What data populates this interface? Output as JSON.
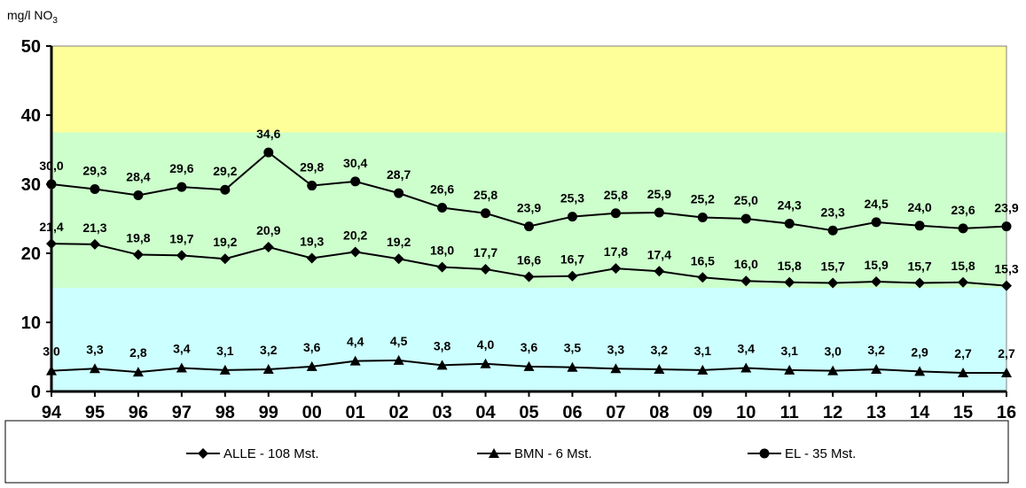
{
  "chart_data": {
    "type": "line",
    "ylabel_main": "mg/l NO",
    "ylabel_sub": "3",
    "categories": [
      "94",
      "95",
      "96",
      "97",
      "98",
      "99",
      "00",
      "01",
      "02",
      "03",
      "04",
      "05",
      "06",
      "07",
      "08",
      "09",
      "10",
      "11",
      "12",
      "13",
      "14",
      "15",
      "16"
    ],
    "ylim": [
      0,
      50
    ],
    "yticks": [
      0,
      10,
      20,
      30,
      40,
      50
    ],
    "background_bands": [
      {
        "from": 0,
        "to": 15,
        "color": "#ccffff"
      },
      {
        "from": 15,
        "to": 37.5,
        "color": "#ccffcc"
      },
      {
        "from": 37.5,
        "to": 50,
        "color": "#ffff99"
      }
    ],
    "series": [
      {
        "name": "ALLE - 108 Mst.",
        "marker": "diamond",
        "values": [
          21.4,
          21.3,
          19.8,
          19.7,
          19.2,
          20.9,
          19.3,
          20.2,
          19.2,
          18.0,
          17.7,
          16.6,
          16.7,
          17.8,
          17.4,
          16.5,
          16.0,
          15.8,
          15.7,
          15.9,
          15.7,
          15.8,
          15.3
        ],
        "labels": [
          "21,4",
          "21,3",
          "19,8",
          "19,7",
          "19,2",
          "20,9",
          "19,3",
          "20,2",
          "19,2",
          "18,0",
          "17,7",
          "16,6",
          "16,7",
          "17,8",
          "17,4",
          "16,5",
          "16,0",
          "15,8",
          "15,7",
          "15,9",
          "15,7",
          "15,8",
          "15,3"
        ]
      },
      {
        "name": "BMN - 6 Mst.",
        "marker": "triangle",
        "values": [
          3.0,
          3.3,
          2.8,
          3.4,
          3.1,
          3.2,
          3.6,
          4.4,
          4.5,
          3.8,
          4.0,
          3.6,
          3.5,
          3.3,
          3.2,
          3.1,
          3.4,
          3.1,
          3.0,
          3.2,
          2.9,
          2.7,
          2.7
        ],
        "labels": [
          "3,0",
          "3,3",
          "2,8",
          "3,4",
          "3,1",
          "3,2",
          "3,6",
          "4,4",
          "4,5",
          "3,8",
          "4,0",
          "3,6",
          "3,5",
          "3,3",
          "3,2",
          "3,1",
          "3,4",
          "3,1",
          "3,0",
          "3,2",
          "2,9",
          "2,7",
          "2,7"
        ]
      },
      {
        "name": "EL - 35 Mst.",
        "marker": "circle",
        "values": [
          30.0,
          29.3,
          28.4,
          29.6,
          29.2,
          34.6,
          29.8,
          30.4,
          28.7,
          26.6,
          25.8,
          23.9,
          25.3,
          25.8,
          25.9,
          25.2,
          25.0,
          24.3,
          23.3,
          24.5,
          24.0,
          23.6,
          23.9
        ],
        "labels": [
          "30,0",
          "29,3",
          "28,4",
          "29,6",
          "29,2",
          "34,6",
          "29,8",
          "30,4",
          "28,7",
          "26,6",
          "25,8",
          "23,9",
          "25,3",
          "25,8",
          "25,9",
          "25,2",
          "25,0",
          "24,3",
          "23,3",
          "24,5",
          "24,0",
          "23,6",
          "23,9"
        ]
      }
    ],
    "legend": {
      "position": "bottom"
    }
  }
}
